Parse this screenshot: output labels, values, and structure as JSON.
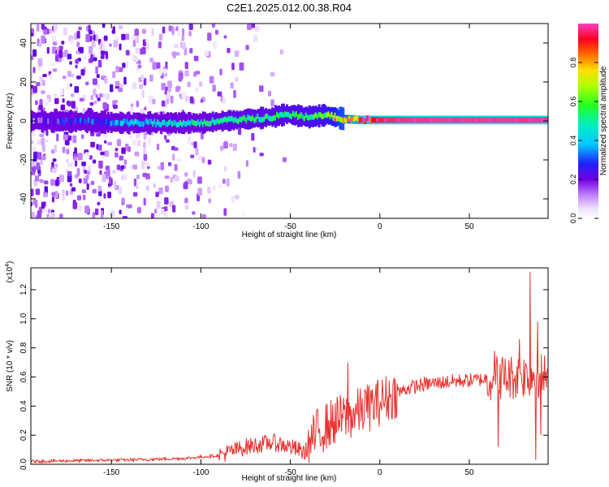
{
  "title": "C2E1.2025.012.00.38.R04",
  "chart_data": [
    {
      "type": "heatmap",
      "xlabel": "Height of straight line (km)",
      "ylabel": "Frequency (Hz)",
      "xlim": [
        -195,
        94
      ],
      "ylim": [
        -50,
        50
      ],
      "xticks": [
        -150,
        -100,
        -50,
        0,
        50
      ],
      "yticks": [
        -40,
        -20,
        0,
        20,
        40
      ],
      "colormap": "rainbow (white-purple-blue-cyan-green-yellow-red-pink)",
      "colorbar": {
        "label": "Normalized spectral amplitude",
        "range": [
          0,
          1
        ],
        "ticks": [
          "0.0",
          "0.2",
          "0.4",
          "0.6",
          "0.8"
        ]
      },
      "ridge": [
        {
          "x": -190,
          "y": 0.0,
          "amp": 0.15
        },
        {
          "x": -160,
          "y": -0.5,
          "amp": 0.28
        },
        {
          "x": -140,
          "y": -1.0,
          "amp": 0.38
        },
        {
          "x": -120,
          "y": -1.0,
          "amp": 0.42
        },
        {
          "x": -100,
          "y": -1.0,
          "amp": 0.45
        },
        {
          "x": -80,
          "y": 0.5,
          "amp": 0.48
        },
        {
          "x": -60,
          "y": 2.0,
          "amp": 0.5
        },
        {
          "x": -52,
          "y": 3.5,
          "amp": 0.5
        },
        {
          "x": -40,
          "y": 2.0,
          "amp": 0.52
        },
        {
          "x": -30,
          "y": 3.0,
          "amp": 0.55
        },
        {
          "x": -20,
          "y": 1.0,
          "amp": 0.7
        },
        {
          "x": -10,
          "y": 0.5,
          "amp": 0.85
        },
        {
          "x": 0,
          "y": 0.5,
          "amp": 0.95
        },
        {
          "x": 20,
          "y": 0.5,
          "amp": 0.98
        },
        {
          "x": 50,
          "y": 0.5,
          "amp": 0.98
        },
        {
          "x": 94,
          "y": 0.5,
          "amp": 0.98
        }
      ],
      "grid": false
    },
    {
      "type": "line",
      "xlabel": "Height of straight line (km)",
      "ylabel": "SNR (10 * v/v)",
      "y_multiplier": "(x10^4)",
      "xlim": [
        -195,
        94
      ],
      "ylim": [
        0,
        1.35
      ],
      "xticks": [
        -150,
        -100,
        -50,
        0,
        50
      ],
      "yticks": [
        "0.0",
        "0.2",
        "0.4",
        "0.6",
        "0.8",
        "1.0",
        "1.2"
      ],
      "series": [
        {
          "color": "#e8332e",
          "envelope": [
            {
              "x": -195,
              "y": 0.02
            },
            {
              "x": -140,
              "y": 0.03
            },
            {
              "x": -110,
              "y": 0.04
            },
            {
              "x": -90,
              "y": 0.06
            },
            {
              "x": -75,
              "y": 0.12
            },
            {
              "x": -60,
              "y": 0.15
            },
            {
              "x": -50,
              "y": 0.12
            },
            {
              "x": -42,
              "y": 0.08
            },
            {
              "x": -35,
              "y": 0.22
            },
            {
              "x": -25,
              "y": 0.3
            },
            {
              "x": -15,
              "y": 0.34
            },
            {
              "x": -5,
              "y": 0.4
            },
            {
              "x": 5,
              "y": 0.46
            },
            {
              "x": 15,
              "y": 0.52
            },
            {
              "x": 25,
              "y": 0.55
            },
            {
              "x": 40,
              "y": 0.57
            },
            {
              "x": 55,
              "y": 0.58
            },
            {
              "x": 65,
              "y": 0.6
            },
            {
              "x": 75,
              "y": 0.6
            },
            {
              "x": 85,
              "y": 0.62
            },
            {
              "x": 94,
              "y": 0.6
            }
          ],
          "spikes": [
            {
              "x": -18,
              "y": 0.7
            },
            {
              "x": -8,
              "y": 0.5
            },
            {
              "x": 64,
              "y": 0.78
            },
            {
              "x": 66,
              "y": 0.12
            },
            {
              "x": 78,
              "y": 0.86
            },
            {
              "x": 84,
              "y": 1.32
            },
            {
              "x": 87,
              "y": 0.03
            },
            {
              "x": 88,
              "y": 0.98
            },
            {
              "x": 90,
              "y": 0.2
            }
          ]
        }
      ],
      "grid": false
    }
  ]
}
